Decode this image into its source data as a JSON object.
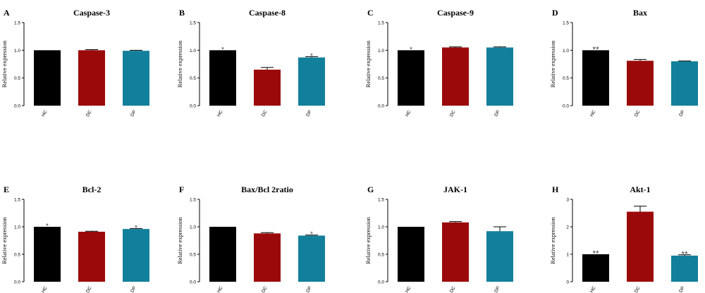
{
  "chart_data": [
    {
      "type": "bar",
      "letter": "A",
      "title": "Caspase-3",
      "ylabel": "Relative expression",
      "categories": [
        "HC",
        "DC",
        "DP"
      ],
      "values": [
        1.0,
        1.0,
        0.99
      ],
      "errors": [
        0,
        0.01,
        0.01
      ],
      "annotations": [
        "",
        "",
        ""
      ],
      "ylim": [
        0,
        1.5
      ],
      "yticks": [
        "0.0",
        "0.5",
        "1.0",
        "1.5"
      ],
      "colors": [
        "#000000",
        "#9b0a0a",
        "#12809a"
      ]
    },
    {
      "type": "bar",
      "letter": "B",
      "title": "Caspase-8",
      "ylabel": "Relative expression",
      "categories": [
        "HC",
        "DC",
        "DP"
      ],
      "values": [
        1.0,
        0.65,
        0.87
      ],
      "errors": [
        0,
        0.04,
        0.015
      ],
      "annotations": [
        "*",
        "",
        "*"
      ],
      "ylim": [
        0,
        1.5
      ],
      "yticks": [
        "0.0",
        "0.5",
        "1.0",
        "1.5"
      ],
      "colors": [
        "#000000",
        "#9b0a0a",
        "#12809a"
      ]
    },
    {
      "type": "bar",
      "letter": "C",
      "title": "Caspase-9",
      "ylabel": "Relative expression",
      "categories": [
        "HC",
        "DC",
        "DP"
      ],
      "values": [
        1.0,
        1.05,
        1.05
      ],
      "errors": [
        0,
        0.01,
        0.01
      ],
      "annotations": [
        "*",
        "",
        ""
      ],
      "ylim": [
        0,
        1.5
      ],
      "yticks": [
        "0.0",
        "0.5",
        "1.0",
        "1.5"
      ],
      "colors": [
        "#000000",
        "#9b0a0a",
        "#12809a"
      ]
    },
    {
      "type": "bar",
      "letter": "D",
      "title": "Bax",
      "ylabel": "Relative expression",
      "categories": [
        "HC",
        "DC",
        "DP"
      ],
      "values": [
        1.0,
        0.81,
        0.8
      ],
      "errors": [
        0,
        0.025,
        0.005
      ],
      "annotations": [
        "**",
        "",
        ""
      ],
      "ylim": [
        0,
        1.5
      ],
      "yticks": [
        "0.0",
        "0.5",
        "1.0",
        "1.5"
      ],
      "colors": [
        "#000000",
        "#9b0a0a",
        "#12809a"
      ]
    },
    {
      "type": "bar",
      "letter": "E",
      "title": "Bcl-2",
      "ylabel": "Relative expression",
      "categories": [
        "HC",
        "DC",
        "DP"
      ],
      "values": [
        1.0,
        0.91,
        0.96
      ],
      "errors": [
        0,
        0.01,
        0.01
      ],
      "annotations": [
        "*",
        "",
        "*"
      ],
      "ylim": [
        0,
        1.5
      ],
      "yticks": [
        "0.0",
        "0.5",
        "1.0",
        "1.5"
      ],
      "colors": [
        "#000000",
        "#9b0a0a",
        "#12809a"
      ]
    },
    {
      "type": "bar",
      "letter": "F",
      "title": "Bax/Bcl 2ratio",
      "ylabel": "Relative expression",
      "categories": [
        "HC",
        "DC",
        "DP"
      ],
      "values": [
        1.0,
        0.88,
        0.84
      ],
      "errors": [
        0,
        0.015,
        0.01
      ],
      "annotations": [
        "",
        "",
        "*"
      ],
      "ylim": [
        0,
        1.5
      ],
      "yticks": [
        "0.0",
        "0.5",
        "1.0",
        "1.5"
      ],
      "colors": [
        "#000000",
        "#9b0a0a",
        "#12809a"
      ]
    },
    {
      "type": "bar",
      "letter": "G",
      "title": "JAK-1",
      "ylabel": "Relative expression",
      "categories": [
        "HC",
        "DC",
        "DP"
      ],
      "values": [
        1.0,
        1.08,
        0.92
      ],
      "errors": [
        0,
        0.015,
        0.08
      ],
      "annotations": [
        "",
        "",
        ""
      ],
      "ylim": [
        0,
        1.5
      ],
      "yticks": [
        "0.0",
        "0.5",
        "1.0",
        "1.5"
      ],
      "colors": [
        "#000000",
        "#9b0a0a",
        "#12809a"
      ]
    },
    {
      "type": "bar",
      "letter": "H",
      "title": "Akt-1",
      "ylabel": "Relative expression",
      "categories": [
        "HC",
        "DC",
        "DP"
      ],
      "values": [
        1.0,
        2.55,
        0.95
      ],
      "errors": [
        0,
        0.2,
        0.03
      ],
      "annotations": [
        "**",
        "",
        "**"
      ],
      "ylim": [
        0,
        3
      ],
      "yticks": [
        "0",
        "1",
        "2",
        "3"
      ],
      "colors": [
        "#000000",
        "#9b0a0a",
        "#12809a"
      ]
    }
  ]
}
